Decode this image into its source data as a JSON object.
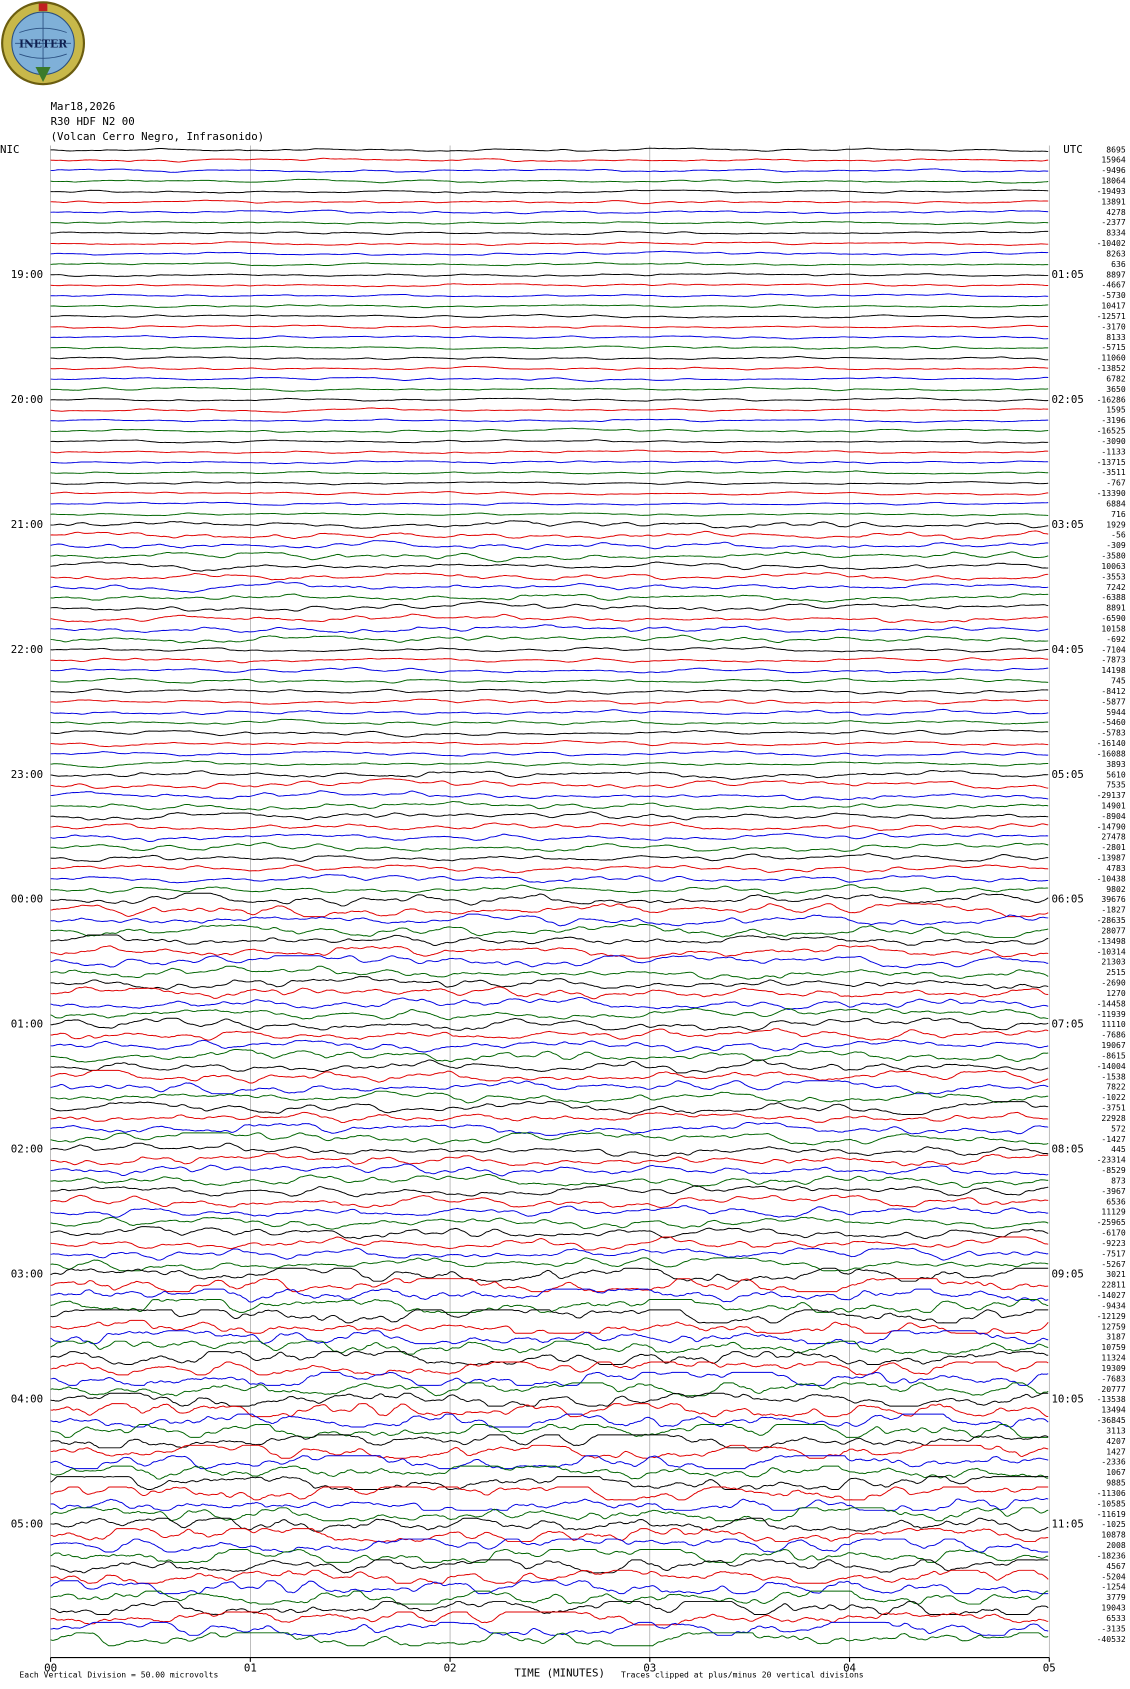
{
  "logo": {
    "text": "INETER"
  },
  "header": {
    "lines": [
      "Mar18,2026",
      "R30 HDF N2 00",
      "(Volcan Cerro Negro, Infrasonido)"
    ]
  },
  "left_labels": [
    "NIC",
    "19:00",
    "20:00",
    "21:00",
    "22:00",
    "23:00",
    "00:00",
    "01:00",
    "02:00",
    "03:00",
    "04:00",
    "05:00"
  ],
  "right_labels": [
    "UTC",
    "01:05",
    "02:05",
    "03:05",
    "04:05",
    "05:05",
    "06:05",
    "07:05",
    "08:05",
    "09:05",
    "10:05",
    "11:05"
  ],
  "offsets": [
    8695,
    15964,
    -9496,
    18064,
    -19493,
    13891,
    4278,
    -2377,
    8334,
    -10402,
    8263,
    636,
    8897,
    -4667,
    -5730,
    10417,
    -12571,
    -3170,
    8133,
    -5715,
    11060,
    -13852,
    6782,
    3650,
    -16286,
    1595,
    -3196,
    -16525,
    -3090,
    -1133,
    -13715,
    -3511,
    -767,
    -13390,
    6884,
    716,
    1929,
    -56,
    -309,
    -3580,
    10063,
    -3553,
    7242,
    -6388,
    8891,
    -6590,
    10158,
    -692,
    -7104,
    -7873,
    14198,
    745,
    -8412,
    -5877,
    5944,
    -5460,
    -5783,
    -16140,
    -16088,
    3893,
    5610,
    7535,
    -29137,
    14901,
    -8904,
    -14790,
    27478,
    -2801,
    -13987,
    4783,
    -10438,
    9802,
    39676,
    -1827,
    -28635,
    28077,
    -13498,
    -10314,
    21303,
    2515,
    -2690,
    1270,
    -14458,
    -11939,
    11110,
    -7686,
    19067,
    -8615,
    -14004,
    -1538,
    7822,
    -1022,
    -3751,
    22928,
    572,
    -1427,
    445,
    -23314,
    -8529,
    873,
    -3967,
    6536,
    11129,
    -25965,
    -6170,
    -9223,
    -7517,
    -5267,
    3021,
    22811,
    -14027,
    -9434,
    -12129,
    12759,
    3187,
    10759,
    11324,
    19309,
    -7683,
    20777,
    -13538,
    13494,
    -36845,
    3113,
    4207,
    1427,
    -2336,
    1067,
    9885,
    -11306,
    -10585,
    -11619,
    -1025,
    10878,
    2008,
    -18236,
    4567,
    -5204,
    -1254,
    3779,
    19043,
    6533,
    -3135,
    -40532
  ],
  "axis": {
    "ticks": [
      "00",
      "01",
      "02",
      "03",
      "04",
      "05"
    ],
    "title": "TIME (MINUTES)"
  },
  "footer": {
    "left": "Each Vertical Division =   50.00 microvolts",
    "right": "Traces clipped at plus/minus 20 vertical divisions"
  }
}
